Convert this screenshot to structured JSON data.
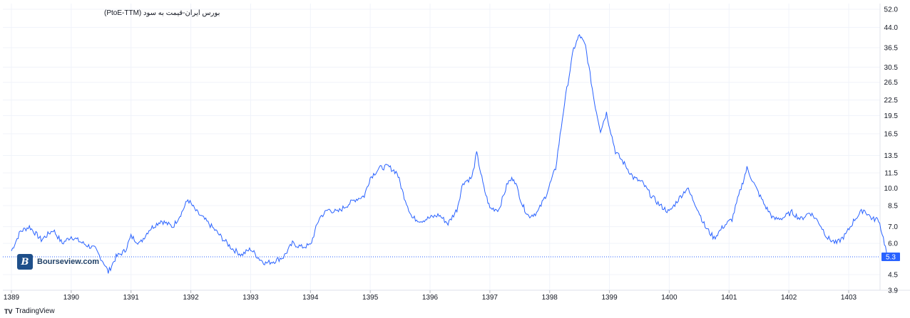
{
  "brand": {
    "logo_letter": "B",
    "name": "Bourseview.com"
  },
  "footer": {
    "icon": "tradingview-logo-icon",
    "label": "TradingView"
  },
  "chart_data": {
    "type": "line",
    "title": "بورس ایران-قیمت به سود (PtoE-TTM)",
    "x_ticks": [
      "1389",
      "1390",
      "1391",
      "1392",
      "1393",
      "1394",
      "1395",
      "1396",
      "1397",
      "1398",
      "1399",
      "1400",
      "1401",
      "1402",
      "1403"
    ],
    "y_ticks": [
      "52.0",
      "44.0",
      "36.5",
      "30.5",
      "26.5",
      "22.5",
      "19.5",
      "16.5",
      "13.5",
      "11.5",
      "10.0",
      "8.5",
      "7.0",
      "6.0",
      "4.5",
      "3.9"
    ],
    "y_scale": "log",
    "ylim": [
      3.6,
      52.0
    ],
    "last_value": "5.3",
    "line_color": "#2962ff",
    "series": [
      {
        "x": [
          1389.0,
          1389.15,
          1389.3,
          1389.5,
          1389.7,
          1389.85,
          1390.0,
          1390.2,
          1390.4,
          1390.55,
          1390.62,
          1390.75,
          1390.9,
          1391.0,
          1391.15,
          1391.3,
          1391.5,
          1391.7,
          1391.85,
          1391.95,
          1392.1,
          1392.25,
          1392.4,
          1392.55,
          1392.7,
          1392.85,
          1393.0,
          1393.15,
          1393.25,
          1393.4,
          1393.55,
          1393.7,
          1393.85,
          1394.0,
          1394.15,
          1394.3,
          1394.45,
          1394.6,
          1394.75,
          1394.9,
          1395.0,
          1395.15,
          1395.3,
          1395.45,
          1395.55,
          1395.7,
          1395.85,
          1396.0,
          1396.15,
          1396.3,
          1396.45,
          1396.55,
          1396.7,
          1396.78,
          1396.9,
          1397.0,
          1397.15,
          1397.3,
          1397.4,
          1397.55,
          1397.65,
          1397.8,
          1397.95,
          1398.1,
          1398.25,
          1398.4,
          1398.5,
          1398.6,
          1398.75,
          1398.85,
          1398.95,
          1399.1,
          1399.25,
          1399.4,
          1399.55,
          1399.7,
          1399.85,
          1400.0,
          1400.15,
          1400.3,
          1400.45,
          1400.6,
          1400.75,
          1400.9,
          1401.05,
          1401.2,
          1401.3,
          1401.45,
          1401.6,
          1401.75,
          1401.9,
          1402.05,
          1402.2,
          1402.35,
          1402.5,
          1402.65,
          1402.8,
          1402.95,
          1403.1,
          1403.25,
          1403.4,
          1403.5,
          1403.58,
          1403.65
        ],
        "values": [
          5.6,
          6.7,
          7.0,
          6.2,
          6.8,
          6.0,
          6.4,
          6.0,
          5.7,
          5.0,
          4.6,
          5.3,
          5.6,
          6.4,
          6.0,
          6.8,
          7.4,
          7.0,
          8.0,
          9.0,
          8.0,
          7.4,
          6.8,
          6.2,
          5.7,
          5.4,
          5.7,
          5.2,
          5.0,
          5.1,
          5.3,
          6.0,
          5.8,
          5.9,
          7.6,
          8.2,
          8.0,
          8.5,
          9.0,
          9.3,
          11.0,
          12.0,
          12.2,
          11.5,
          9.5,
          7.6,
          7.4,
          7.6,
          7.8,
          7.2,
          8.2,
          10.5,
          11.0,
          13.8,
          10.0,
          8.3,
          8.2,
          10.5,
          11.0,
          8.5,
          7.7,
          8.0,
          9.5,
          12.0,
          22.0,
          36.0,
          41.0,
          37.0,
          22.0,
          17.0,
          20.0,
          14.0,
          12.5,
          11.0,
          10.5,
          9.3,
          8.5,
          8.0,
          9.0,
          10.0,
          8.5,
          7.0,
          6.3,
          7.0,
          7.5,
          10.0,
          12.0,
          10.0,
          8.5,
          7.5,
          7.6,
          8.0,
          7.5,
          8.0,
          7.3,
          6.3,
          6.0,
          6.5,
          7.5,
          8.2,
          7.5,
          7.5,
          6.3,
          5.3
        ]
      }
    ]
  }
}
